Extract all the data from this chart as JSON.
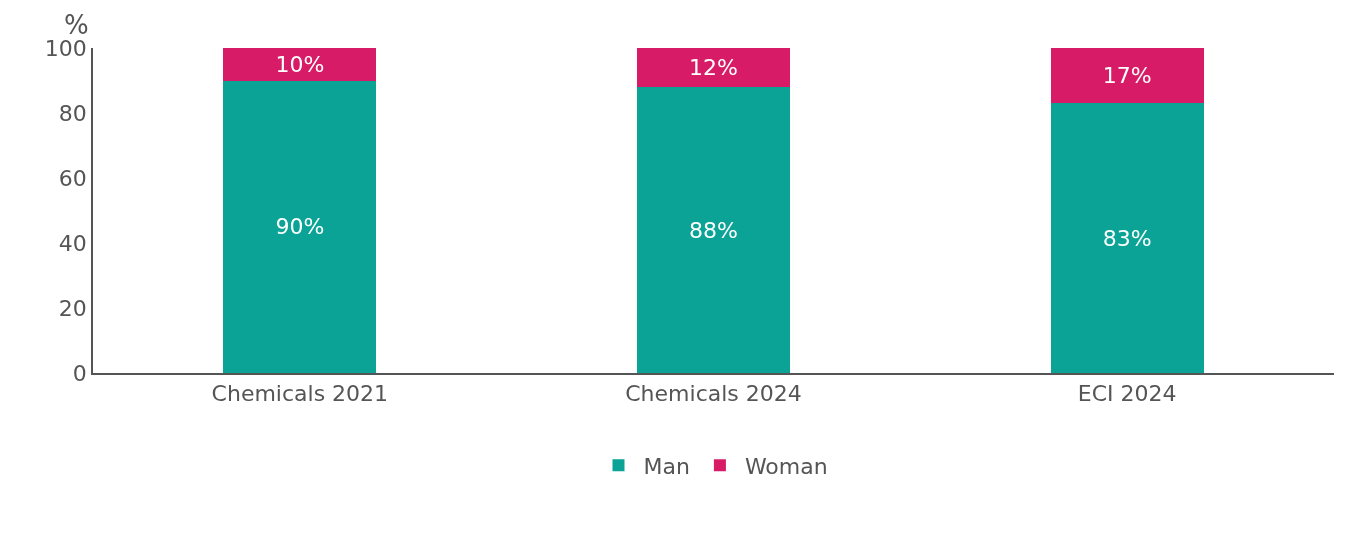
{
  "chart_data": {
    "type": "bar",
    "stacked": true,
    "ylabel": "%",
    "categories": [
      "Chemicals 2021",
      "Chemicals 2024",
      "ECI 2024"
    ],
    "series": [
      {
        "name": "Man",
        "color": "#0aa396",
        "values": [
          90,
          88,
          83
        ],
        "value_labels": [
          "90%",
          "88%",
          "83%"
        ]
      },
      {
        "name": "Woman",
        "color": "#d81b66",
        "values": [
          10,
          12,
          17
        ],
        "value_labels": [
          "10%",
          "12%",
          "17%"
        ]
      }
    ],
    "ylim": [
      0,
      100
    ],
    "yticks": [
      0,
      20,
      40,
      60,
      80,
      100
    ],
    "grid": false,
    "legend": "bottom"
  }
}
